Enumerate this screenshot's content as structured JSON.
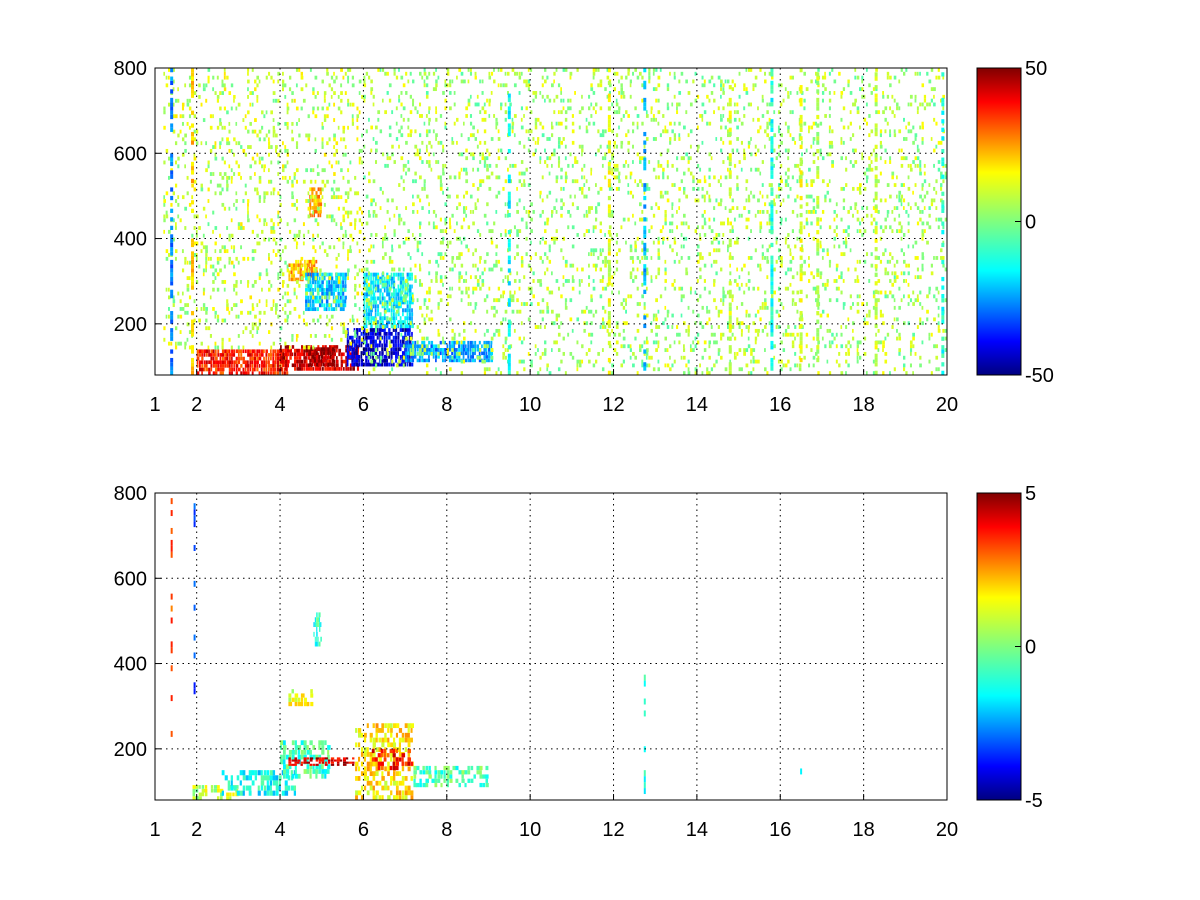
{
  "chart_data": [
    {
      "type": "heatmap",
      "title": "",
      "xlabel": "",
      "ylabel": "",
      "xlim": [
        1,
        20
      ],
      "ylim": [
        80,
        800
      ],
      "grid": true,
      "x_ticks": [
        1,
        2,
        4,
        6,
        8,
        10,
        12,
        14,
        16,
        18,
        20
      ],
      "x_tick_labels": [
        "1",
        "2",
        "4",
        "6",
        "8",
        "10",
        "12",
        "14",
        "16",
        "18",
        "20"
      ],
      "y_ticks": [
        200,
        400,
        600,
        800
      ],
      "y_tick_labels": [
        "200",
        "400",
        "600",
        "800"
      ],
      "colormap": "jet",
      "colorbar": {
        "min": -50,
        "max": 50,
        "ticks": [
          -50,
          0,
          50
        ],
        "tick_labels": [
          "-50",
          "0",
          "50"
        ]
      },
      "regions": [
        {
          "x": [
            2.0,
            4.2
          ],
          "y": [
            80,
            140
          ],
          "value": 35
        },
        {
          "x": [
            4.0,
            5.9
          ],
          "y": [
            90,
            150
          ],
          "value": 42
        },
        {
          "x": [
            4.7,
            5.3
          ],
          "y": [
            100,
            145
          ],
          "value": 48
        },
        {
          "x": [
            5.6,
            7.2
          ],
          "y": [
            100,
            190
          ],
          "value": -42
        },
        {
          "x": [
            7.0,
            9.1
          ],
          "y": [
            110,
            160
          ],
          "value": -22
        },
        {
          "x": [
            4.2,
            4.9
          ],
          "y": [
            300,
            350
          ],
          "value": 20
        },
        {
          "x": [
            4.6,
            5.6
          ],
          "y": [
            230,
            320
          ],
          "value": -18
        },
        {
          "x": [
            6.0,
            7.2
          ],
          "y": [
            190,
            320
          ],
          "value": -15
        },
        {
          "x": [
            4.7,
            5.0
          ],
          "y": [
            450,
            520
          ],
          "value": 22
        },
        {
          "x": [
            1.2,
            6.0
          ],
          "y": [
            140,
            800
          ],
          "value": 6
        },
        {
          "x": [
            6.0,
            20.0
          ],
          "y": [
            80,
            800
          ],
          "value": 4
        }
      ],
      "stripes": [
        {
          "x": 1.4,
          "y": [
            80,
            800
          ],
          "value": -25
        },
        {
          "x": 1.9,
          "y": [
            80,
            800
          ],
          "value": 18
        },
        {
          "x": 9.5,
          "y": [
            80,
            760
          ],
          "value": -12
        },
        {
          "x": 11.9,
          "y": [
            80,
            800
          ],
          "value": 10
        },
        {
          "x": 12.75,
          "y": [
            80,
            800
          ],
          "value": -20
        },
        {
          "x": 14.8,
          "y": [
            80,
            800
          ],
          "value": 8
        },
        {
          "x": 15.8,
          "y": [
            80,
            800
          ],
          "value": -10
        },
        {
          "x": 16.5,
          "y": [
            80,
            800
          ],
          "value": 10
        },
        {
          "x": 16.9,
          "y": [
            80,
            800
          ],
          "value": 6
        },
        {
          "x": 18.3,
          "y": [
            80,
            800
          ],
          "value": 8
        },
        {
          "x": 19.9,
          "y": [
            80,
            800
          ],
          "value": -10
        }
      ]
    },
    {
      "type": "heatmap",
      "title": "",
      "xlabel": "",
      "ylabel": "",
      "xlim": [
        1,
        20
      ],
      "ylim": [
        80,
        800
      ],
      "grid": true,
      "x_ticks": [
        1,
        2,
        4,
        6,
        8,
        10,
        12,
        14,
        16,
        18,
        20
      ],
      "x_tick_labels": [
        "1",
        "2",
        "4",
        "6",
        "8",
        "10",
        "12",
        "14",
        "16",
        "18",
        "20"
      ],
      "y_ticks": [
        200,
        400,
        600,
        800
      ],
      "y_tick_labels": [
        "200",
        "400",
        "600",
        "800"
      ],
      "colormap": "jet",
      "colorbar": {
        "min": -5,
        "max": 5,
        "ticks": [
          -5,
          0,
          5
        ],
        "tick_labels": [
          "-5",
          "0",
          "5"
        ]
      },
      "regions": [
        {
          "x": [
            1.9,
            3.0
          ],
          "y": [
            80,
            115
          ],
          "value": 0.6
        },
        {
          "x": [
            2.6,
            4.4
          ],
          "y": [
            90,
            150
          ],
          "value": -1.2
        },
        {
          "x": [
            4.0,
            5.2
          ],
          "y": [
            130,
            220
          ],
          "value": -0.6
        },
        {
          "x": [
            4.2,
            5.8
          ],
          "y": [
            160,
            180
          ],
          "value": 4.2
        },
        {
          "x": [
            5.8,
            7.2
          ],
          "y": [
            80,
            260
          ],
          "value": 1.5
        },
        {
          "x": [
            6.2,
            7.2
          ],
          "y": [
            150,
            200
          ],
          "value": 3.5
        },
        {
          "x": [
            7.2,
            9.0
          ],
          "y": [
            110,
            160
          ],
          "value": -0.5
        },
        {
          "x": [
            4.2,
            4.8
          ],
          "y": [
            300,
            340
          ],
          "value": 1.0
        },
        {
          "x": [
            4.8,
            5.0
          ],
          "y": [
            440,
            520
          ],
          "value": -0.8
        }
      ],
      "stripes": [
        {
          "x": 1.4,
          "y": [
            200,
            800
          ],
          "value": 3.0
        },
        {
          "x": 1.95,
          "y": [
            300,
            780
          ],
          "value": -3.0
        },
        {
          "x": 12.75,
          "y": [
            80,
            400
          ],
          "value": -1.0
        },
        {
          "x": 16.5,
          "y": [
            140,
            160
          ],
          "value": -0.8
        }
      ]
    }
  ]
}
